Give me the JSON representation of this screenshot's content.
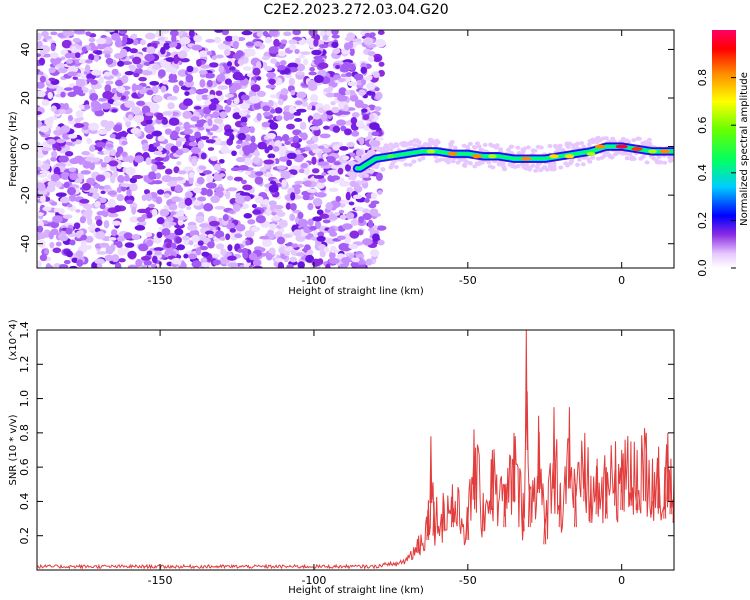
{
  "title": "C2E2.2023.272.03.04.G20",
  "chart_data": [
    {
      "type": "heatmap",
      "xlabel": "Height of straight line (km)",
      "ylabel": "Frequency (Hz)",
      "xlim": [
        -190,
        17
      ],
      "ylim": [
        -50,
        48
      ],
      "xticks": [
        -150,
        -100,
        -50,
        0
      ],
      "yticks": [
        -40,
        -20,
        0,
        20,
        40
      ],
      "colorbar": {
        "label": "Normalized spectral amplitude",
        "range": [
          0,
          1
        ],
        "ticks": [
          "0.0",
          "0.2",
          "0.4",
          "0.6",
          "0.8"
        ]
      },
      "noise_region_x": [
        -190,
        -80
      ],
      "signal_track": {
        "x": [
          -85,
          -80,
          -75,
          -70,
          -65,
          -60,
          -55,
          -50,
          -45,
          -40,
          -35,
          -30,
          -25,
          -20,
          -15,
          -10,
          -5,
          0,
          5,
          10,
          15
        ],
        "y": [
          -9,
          -5,
          -4,
          -3,
          -2,
          -2,
          -3,
          -3,
          -4,
          -4,
          -5,
          -5,
          -5,
          -4,
          -3,
          -2,
          0,
          0,
          -1,
          -2,
          -2
        ]
      },
      "peaks": [
        {
          "x": -75,
          "y": -4,
          "amplitude": 0.45
        },
        {
          "x": -62,
          "y": -2,
          "amplitude": 0.6
        },
        {
          "x": -55,
          "y": -3,
          "amplitude": 0.75
        },
        {
          "x": -47,
          "y": -4,
          "amplitude": 0.75
        },
        {
          "x": -42,
          "y": -4,
          "amplitude": 0.6
        },
        {
          "x": -31,
          "y": -5,
          "amplitude": 0.8
        },
        {
          "x": -22,
          "y": -4,
          "amplitude": 0.7
        },
        {
          "x": -17,
          "y": -4,
          "amplitude": 0.7
        },
        {
          "x": -10,
          "y": -3,
          "amplitude": 0.6
        },
        {
          "x": -7,
          "y": 0,
          "amplitude": 0.8
        },
        {
          "x": 0,
          "y": 0,
          "amplitude": 1.0
        },
        {
          "x": 5,
          "y": -1,
          "amplitude": 0.9
        },
        {
          "x": 10,
          "y": -2,
          "amplitude": 0.6
        },
        {
          "x": 14,
          "y": -2,
          "amplitude": 0.8
        }
      ]
    },
    {
      "type": "line",
      "xlabel": "Height of straight line (km)",
      "ylabel": "SNR (10 * v/v)",
      "y_multiplier": "(x10^4)",
      "xlim": [
        -190,
        17
      ],
      "ylim": [
        0,
        1.4
      ],
      "xticks": [
        -150,
        -100,
        -50,
        0
      ],
      "yticks": [
        0.2,
        0.4,
        0.6,
        0.8,
        1.0,
        1.2,
        1.4
      ],
      "color": "#e23c3c",
      "series": [
        {
          "x": [
            -190,
            -150,
            -100,
            -80,
            -75,
            -70,
            -66,
            -63,
            -62,
            -61,
            -58,
            -55,
            -50,
            -48,
            -45,
            -42,
            -38,
            -35,
            -32,
            -31,
            -30,
            -27,
            -25,
            -22,
            -20,
            -17,
            -15,
            -12,
            -10,
            -8,
            -5,
            -2,
            0,
            3,
            5,
            8,
            10,
            12,
            14,
            15,
            16,
            17
          ],
          "y": [
            0.01,
            0.01,
            0.01,
            0.01,
            0.03,
            0.08,
            0.2,
            0.35,
            0.78,
            0.4,
            0.45,
            0.5,
            0.35,
            0.82,
            0.45,
            0.7,
            0.5,
            0.8,
            0.45,
            1.4,
            0.5,
            0.9,
            0.3,
            0.95,
            0.5,
            0.95,
            0.5,
            0.8,
            0.55,
            0.65,
            0.6,
            0.75,
            0.7,
            0.75,
            0.7,
            0.8,
            0.65,
            0.72,
            0.6,
            0.8,
            0.65,
            0.55
          ]
        }
      ]
    }
  ]
}
